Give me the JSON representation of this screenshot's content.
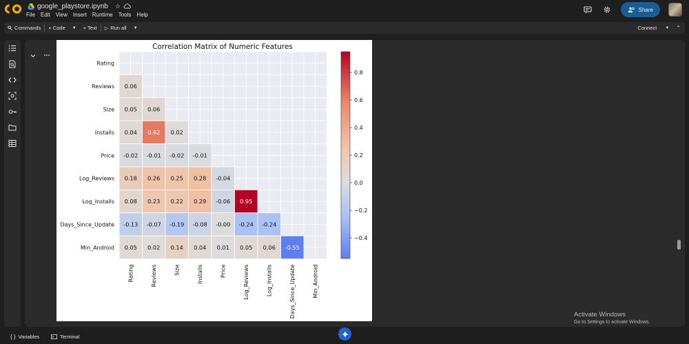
{
  "app": {
    "notebook_title": "google_playstore.ipynb",
    "logo": "colab-logo",
    "menu": [
      "File",
      "Edit",
      "View",
      "Insert",
      "Runtime",
      "Tools",
      "Help"
    ],
    "share_label": "Share"
  },
  "toolbar": {
    "commands_label": "Commands",
    "code_label": "+ Code",
    "text_label": "+ Text",
    "run_all_label": "Run all",
    "connect_label": "Connect"
  },
  "sidebar": {
    "icons": [
      "table-of-contents-icon",
      "find-icon",
      "code-snippets-icon",
      "variables-inspector-icon",
      "secrets-key-icon",
      "files-folder-icon",
      "data-table-icon"
    ]
  },
  "status": {
    "variables_label": "Variables",
    "terminal_label": "Terminal"
  },
  "watermark": {
    "line1": "Activate Windows",
    "line2": "Go to Settings to activate Windows."
  },
  "colors": {
    "accent": "#1a5d94",
    "cmap_low": "#3b4cc0",
    "cmap_mid": "#dddddd",
    "cmap_high": "#b40426"
  },
  "chart_data": {
    "type": "heatmap",
    "title": "Correlation Matrix of Numeric Features",
    "labels": [
      "Rating",
      "Reviews",
      "Size",
      "Installs",
      "Price",
      "Log_Reviews",
      "Log_Installs",
      "Days_Since_Update",
      "Min_Android"
    ],
    "lower_triangle": [
      [],
      [
        "0.06"
      ],
      [
        "0.05",
        "0.06"
      ],
      [
        "0.04",
        "0.62",
        "0.02"
      ],
      [
        "-0.02",
        "-0.01",
        "-0.02",
        "-0.01"
      ],
      [
        "0.18",
        "0.26",
        "0.25",
        "0.28",
        "-0.04"
      ],
      [
        "0.08",
        "0.23",
        "0.22",
        "0.29",
        "-0.06",
        "0.95"
      ],
      [
        "-0.13",
        "-0.07",
        "-0.19",
        "-0.08",
        "-0.00",
        "-0.24",
        "-0.24"
      ],
      [
        "0.05",
        "0.02",
        "0.14",
        "0.04",
        "0.01",
        "0.05",
        "0.06",
        "-0.55"
      ]
    ],
    "colorbar": {
      "vmin": -0.55,
      "vmax": 0.95,
      "ticks": [
        "0.8",
        "0.6",
        "0.4",
        "0.2",
        "0.0",
        "−0.2",
        "−0.4"
      ]
    }
  }
}
